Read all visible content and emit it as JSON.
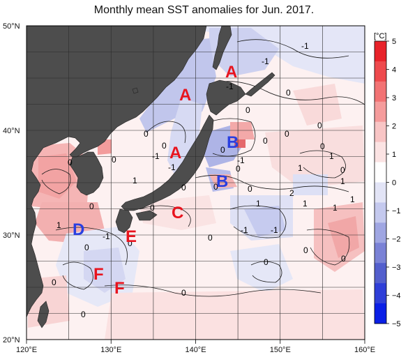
{
  "title": "Monthly mean SST anomalies for Jun. 2017.",
  "lat_labels": [
    "50°N",
    "40°N",
    "30°N",
    "20°N"
  ],
  "lon_labels": [
    "120°E",
    "130°E",
    "140°E",
    "150°E",
    "160°E"
  ],
  "colorbar": {
    "unit": "[°C]",
    "ticks": [
      "5",
      "4",
      "3",
      "2",
      "1",
      "0",
      "−1",
      "−2",
      "−3",
      "−4",
      "−5"
    ],
    "colors": [
      "#e8232a",
      "#ee4a4d",
      "#f27374",
      "#f59c9c",
      "#f8c5c5",
      "#fbe3e3",
      "#ffffff",
      "#e2e4f6",
      "#c4c9ee",
      "#9fa6e2",
      "#7a82d6",
      "#535fcd",
      "#2f3fd8",
      "#0a1fe6"
    ]
  },
  "regions": [
    {
      "letter": "A",
      "color": "#e8141e"
    },
    {
      "letter": "A",
      "color": "#e8141e"
    },
    {
      "letter": "A",
      "color": "#e8141e"
    },
    {
      "letter": "B",
      "color": "#2a3fe0"
    },
    {
      "letter": "B",
      "color": "#2a3fe0"
    },
    {
      "letter": "C",
      "color": "#e8141e"
    },
    {
      "letter": "D",
      "color": "#2a3fe0"
    },
    {
      "letter": "E",
      "color": "#e8141e"
    },
    {
      "letter": "F",
      "color": "#e8141e"
    },
    {
      "letter": "F",
      "color": "#e8141e"
    }
  ],
  "contour_labels": [
    "-1",
    "-1",
    "-1",
    "0",
    "0",
    "0",
    "0",
    "0",
    "0",
    "0",
    "-1",
    "-1",
    "0",
    "-1",
    "0",
    "0",
    "0",
    "2",
    "1",
    "0",
    "1",
    "1",
    "1",
    "1",
    "-1",
    "-1",
    "0",
    "0",
    "0",
    "-1",
    "0",
    "0",
    "0",
    "0",
    "0",
    "0",
    "1",
    "0",
    "0",
    "0",
    "0",
    "1",
    "0",
    "0",
    "1",
    "1"
  ],
  "colors": {
    "land": "#4d4d4d",
    "ocean_base": "#fdf3f3"
  }
}
